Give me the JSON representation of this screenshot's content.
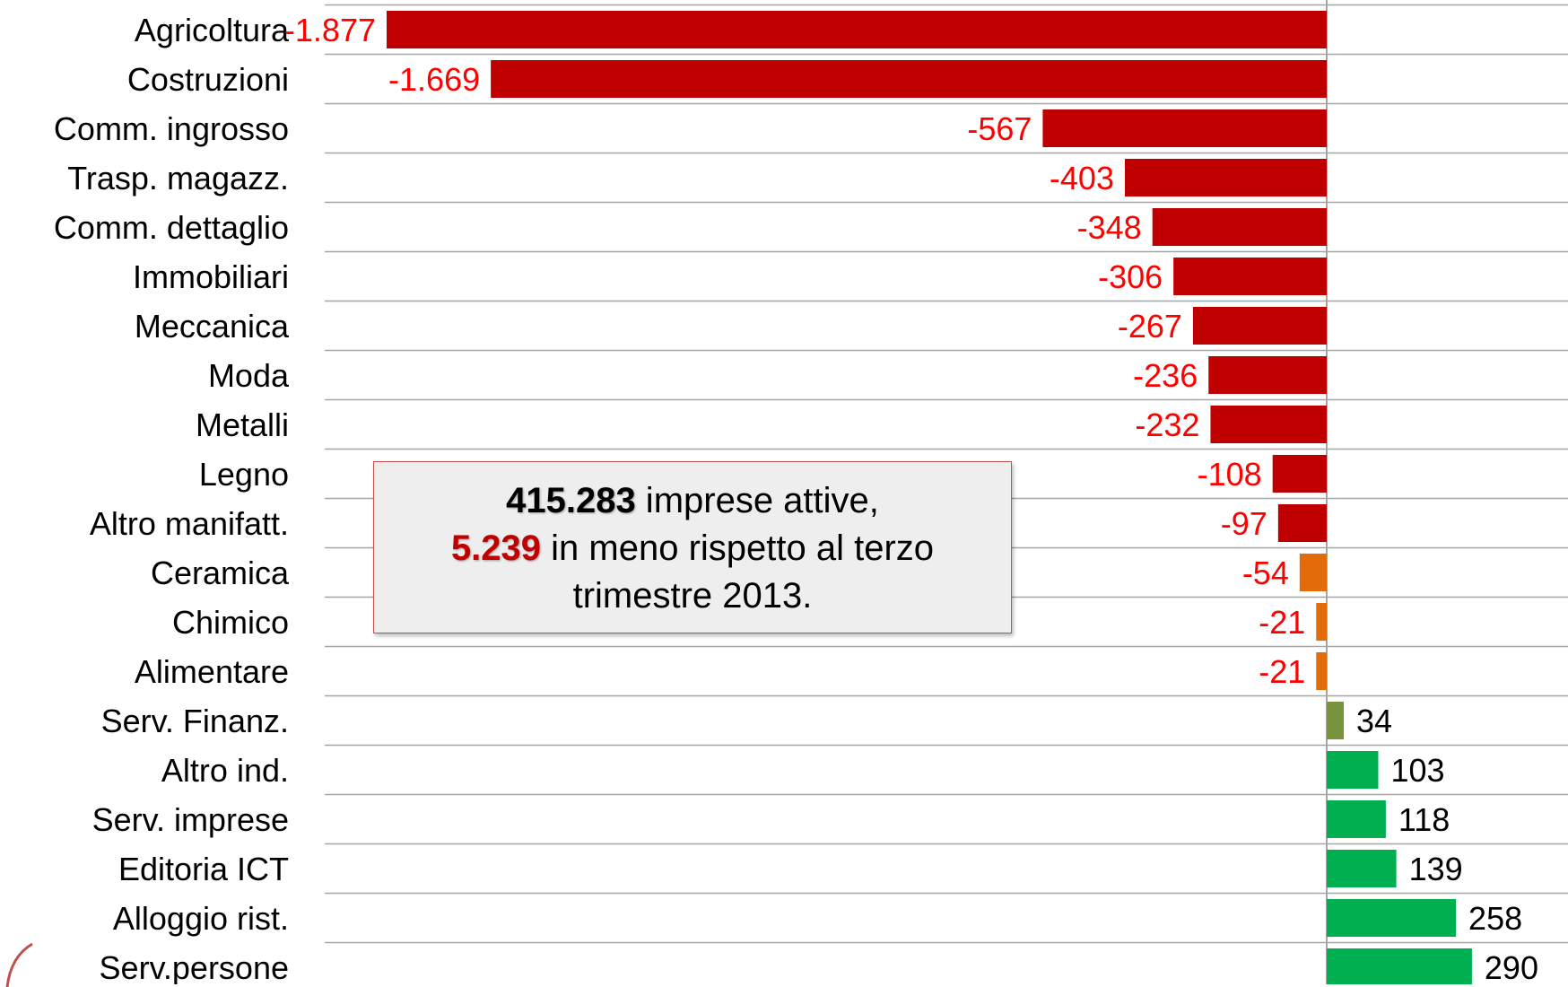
{
  "chart_data": {
    "type": "bar",
    "orientation": "horizontal",
    "categories": [
      "Agricoltura",
      "Costruzioni",
      "Comm. ingrosso",
      "Trasp. magazz.",
      "Comm. dettaglio",
      "Immobiliari",
      "Meccanica",
      "Moda",
      "Metalli",
      "Legno",
      "Altro manifatt.",
      "Ceramica",
      "Chimico",
      "Alimentare",
      "Serv. Finanz.",
      "Altro ind.",
      "Serv. imprese",
      "Editoria ICT",
      "Alloggio rist.",
      "Serv.persone"
    ],
    "values": [
      -1877,
      -1669,
      -567,
      -403,
      -348,
      -306,
      -267,
      -236,
      -232,
      -108,
      -97,
      -54,
      -21,
      -21,
      34,
      103,
      118,
      139,
      258,
      290
    ],
    "value_labels": [
      "-1.877",
      "-1.669",
      "-567",
      "-403",
      "-348",
      "-306",
      "-267",
      "-236",
      "-232",
      "-108",
      "-97",
      "-54",
      "-21",
      "-21",
      "34",
      "103",
      "118",
      "139",
      "258",
      "290"
    ],
    "bar_colors": [
      "#c00000",
      "#c00000",
      "#c00000",
      "#c00000",
      "#c00000",
      "#c00000",
      "#c00000",
      "#c00000",
      "#c00000",
      "#c00000",
      "#c00000",
      "#e36c0a",
      "#e36c0a",
      "#e36c0a",
      "#77933c",
      "#00b050",
      "#00b050",
      "#00b050",
      "#00b050",
      "#00b050"
    ],
    "negative_label_color": "#ff0000",
    "positive_label_color": "#000000",
    "gridline_color": "#a6a6a6",
    "grid": true,
    "title": "",
    "xlabel": "",
    "ylabel": ""
  },
  "callout": {
    "total_value": "415.283",
    "total_text": " imprese attive,",
    "delta_value": "5.239",
    "delta_text": " in meno rispetto al terzo",
    "line3": "trimestre 2013."
  }
}
